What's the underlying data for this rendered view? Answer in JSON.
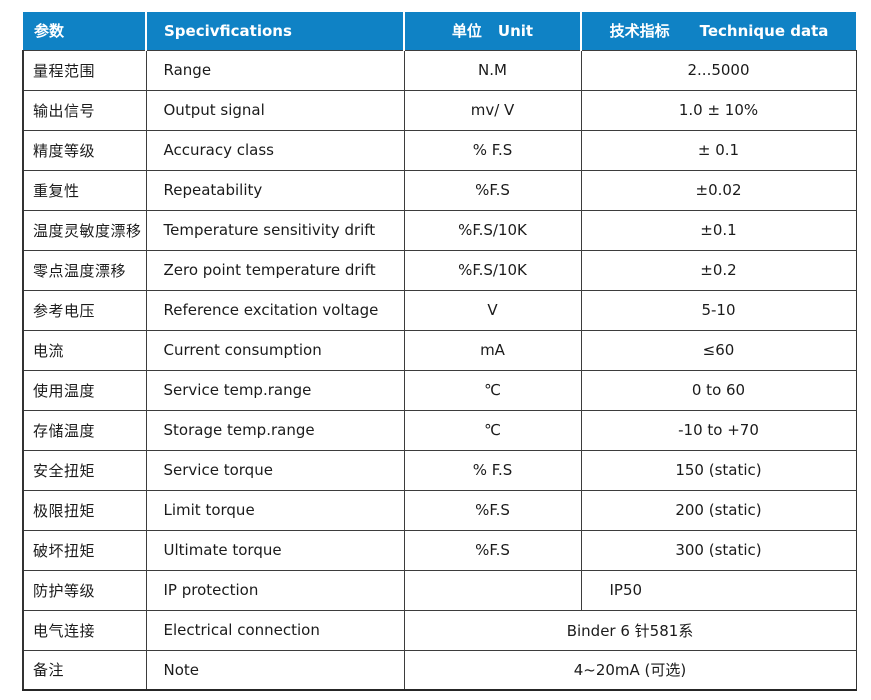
{
  "colors": {
    "header_bg": "#0f82c5",
    "header_text": "#ffffff",
    "grid_border": "#3d3d3d",
    "body_text": "#1b1b1b",
    "background": "#ffffff"
  },
  "table": {
    "header": {
      "param_cn": "参数",
      "spec_en": "Specivfications",
      "unit_cn": "单位",
      "unit_en": "Unit",
      "tech_cn": "技术指标",
      "tech_en": "Technique data"
    },
    "rows": [
      {
        "cn": "量程范围",
        "en": "Range",
        "unit": "N.M",
        "value": "2...5000"
      },
      {
        "cn": "输出信号",
        "en": "Output signal",
        "unit": "mv/ V",
        "value": "1.0 ± 10%"
      },
      {
        "cn": "精度等级",
        "en": "Accuracy class",
        "unit": "% F.S",
        "value": "± 0.1"
      },
      {
        "cn": "重复性",
        "en": "Repeatability",
        "unit": "%F.S",
        "value": "±0.02"
      },
      {
        "cn": "温度灵敏度漂移",
        "en": "Temperature sensitivity drift",
        "unit": "%F.S/10K",
        "value": "±0.1"
      },
      {
        "cn": "零点温度漂移",
        "en": "Zero point temperature drift",
        "unit": "%F.S/10K",
        "value": "±0.2"
      },
      {
        "cn": "参考电压",
        "en": "Reference excitation voltage",
        "unit": "V",
        "value": "5-10"
      },
      {
        "cn": "电流",
        "en": "Current consumption",
        "unit": "mA",
        "value": "≤60"
      },
      {
        "cn": "使用温度",
        "en": "Service temp.range",
        "unit": "℃",
        "value": "0 to 60"
      },
      {
        "cn": "存储温度",
        "en": "Storage temp.range",
        "unit": "℃",
        "value": "-10 to +70"
      },
      {
        "cn": "安全扭矩",
        "en": "Service torque",
        "unit": "% F.S",
        "value": "150 (static)"
      },
      {
        "cn": "极限扭矩",
        "en": "Limit torque",
        "unit": "%F.S",
        "value": "200 (static)"
      },
      {
        "cn": "破坏扭矩",
        "en": "Ultimate torque",
        "unit": "%F.S",
        "value": "300 (static)"
      },
      {
        "cn": "防护等级",
        "en": "IP protection",
        "unit": "",
        "value": "IP50",
        "value_align": "left"
      },
      {
        "cn": "电气连接",
        "en": "Electrical connection",
        "merged": true,
        "value": "Binder 6 针581系"
      },
      {
        "cn": "备注",
        "en": "Note",
        "merged": true,
        "value": "4~20mA (可选)"
      }
    ]
  }
}
